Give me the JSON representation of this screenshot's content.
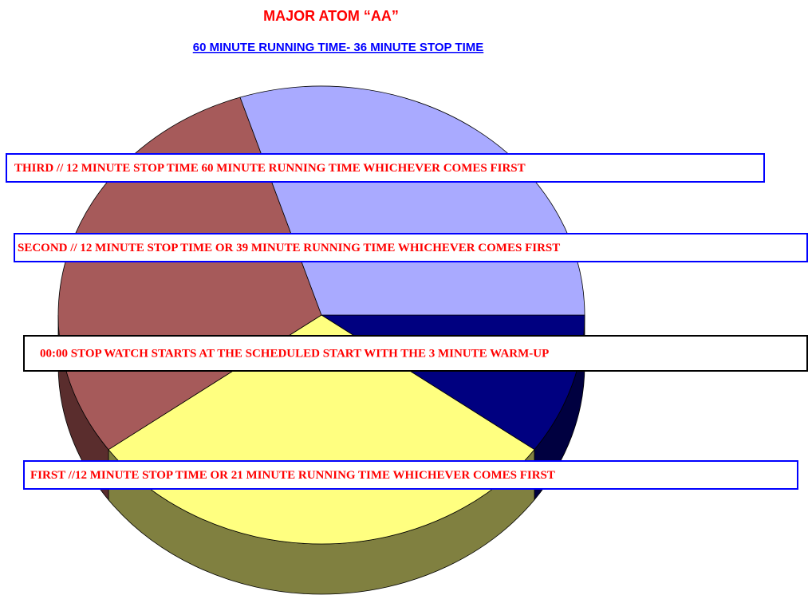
{
  "chart_data": {
    "type": "pie",
    "title": "MAJOR ATOM “AA”",
    "subtitle": "60 MINUTE RUNNING TIME- 36 MINUTE STOP TIME",
    "categories": [
      null,
      null,
      null,
      null
    ],
    "values": [
      10,
      30,
      30,
      30
    ],
    "colors": [
      "#000080",
      "#ffff80",
      "#a65a5a",
      "#a9aaff"
    ],
    "side_colors": [
      "#000040",
      "#808040",
      "#5a2d2d",
      "#5557a0"
    ],
    "annotations": [
      "THIRD // 12 MINUTE STOP TIME 60 MINUTE RUNNING TIME WHICHEVER COMES FIRST",
      "SECOND // 12 MINUTE STOP TIME OR 39 MINUTE RUNNING TIME WHICHEVER COMES FIRST",
      "00:00 STOP WATCH STARTS AT THE SCHEDULED START WITH THE 3 MINUTE WARM-UP",
      "FIRST //12 MINUTE STOP TIME OR 21 MINUTE RUNNING TIME WHICHEVER COMES FIRST"
    ]
  }
}
